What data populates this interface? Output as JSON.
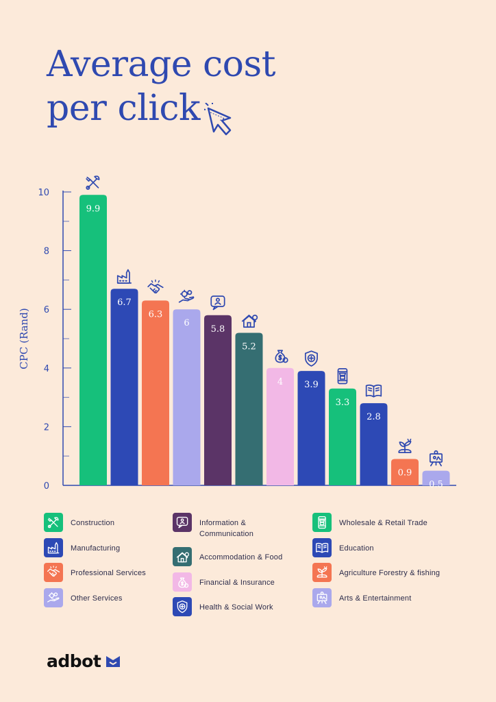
{
  "chart_data": {
    "type": "bar",
    "title_lines": [
      "Average cost",
      "per click"
    ],
    "ylabel": "CPC (Rand)",
    "ylim": [
      0,
      10
    ],
    "yticks": [
      0,
      2,
      4,
      6,
      8,
      10
    ],
    "grid": false,
    "legend_position": "bottom",
    "categories": [
      "Construction",
      "Manufacturing",
      "Professional Services",
      "Other Services",
      "Information & Communication",
      "Accommodation & Food",
      "Financial & Insurance",
      "Health & Social Work",
      "Wholesale & Retail Trade",
      "Education",
      "Agriculture Forestry & fishing",
      "Arts & Entertainment"
    ],
    "values": [
      9.9,
      6.7,
      6.3,
      6,
      5.8,
      5.2,
      4,
      3.9,
      3.3,
      2.8,
      0.9,
      0.5
    ],
    "value_labels": [
      "9.9",
      "6.7",
      "6.3",
      "6",
      "5.8",
      "5.2",
      "4",
      "3.9",
      "3.3",
      "2.8",
      "0.9",
      "0.5"
    ],
    "colors": [
      "#16C07B",
      "#2D49B5",
      "#F47552",
      "#AAA8EC",
      "#5B3467",
      "#356E72",
      "#F2B8E6",
      "#2D49B5",
      "#16C07B",
      "#2D49B5",
      "#F47552",
      "#AAA8EC"
    ],
    "icons": [
      "tools-icon",
      "factory-icon",
      "handshake-icon",
      "gears-hand-icon",
      "chat-user-icon",
      "house-tree-icon",
      "money-bag-icon",
      "shield-cross-icon",
      "phone-store-icon",
      "book-icon",
      "plant-hand-icon",
      "easel-icon"
    ]
  },
  "legend_layout": [
    [
      0,
      1,
      2,
      3
    ],
    [
      4,
      5,
      6,
      7
    ],
    [
      8,
      9,
      10,
      11
    ]
  ],
  "legend_lines": {
    "4": [
      "Information &",
      "Communication"
    ]
  },
  "brand": {
    "name": "adbot",
    "color": "#2F49B0",
    "title_color": "#2F49B0",
    "background": "#FCEADA"
  }
}
